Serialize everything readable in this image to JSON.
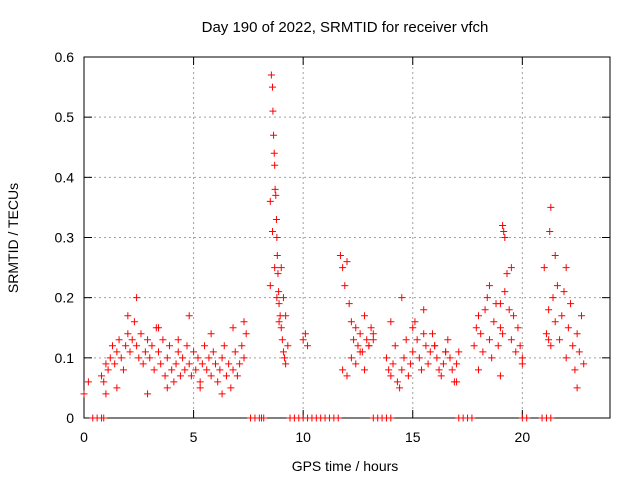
{
  "chart_data": {
    "type": "scatter",
    "title": "Day 190 of 2022, SRMTID for receiver vfch",
    "xlabel": "GPS time / hours",
    "ylabel": "SRMTID / TECUs",
    "xlim": [
      0,
      24
    ],
    "ylim": [
      0,
      0.6
    ],
    "xticks": [
      0,
      5,
      10,
      15,
      20
    ],
    "xtick_labels": [
      "0",
      "5",
      "10",
      "15",
      "20"
    ],
    "yticks": [
      0,
      0.1,
      0.2,
      0.3,
      0.4,
      0.5,
      0.6
    ],
    "ytick_labels": [
      "0",
      "0.1",
      "0.2",
      "0.3",
      "0.4",
      "0.5",
      "0.6"
    ],
    "grid": true,
    "marker": "+",
    "series_color": "#ff0000",
    "series": [
      {
        "name": "SRMTID",
        "x": [
          0.8,
          0.9,
          1.0,
          1.1,
          1.2,
          1.3,
          1.4,
          1.5,
          1.6,
          1.7,
          1.8,
          1.9,
          2.0,
          2.1,
          2.2,
          2.3,
          2.4,
          2.5,
          2.6,
          2.7,
          2.8,
          2.9,
          3.0,
          3.1,
          3.2,
          3.3,
          3.4,
          3.5,
          3.6,
          3.7,
          3.8,
          3.9,
          4.0,
          4.1,
          4.2,
          4.3,
          4.4,
          4.5,
          4.6,
          4.7,
          4.8,
          4.9,
          5.0,
          5.1,
          5.2,
          5.3,
          5.4,
          5.5,
          5.6,
          5.7,
          5.8,
          5.9,
          6.0,
          6.1,
          6.2,
          6.3,
          6.4,
          6.5,
          6.6,
          6.7,
          6.8,
          6.9,
          7.0,
          7.1,
          7.2,
          7.3,
          7.4,
          1.0,
          1.5,
          2.0,
          2.4,
          2.9,
          3.4,
          3.8,
          4.3,
          4.8,
          5.3,
          5.8,
          6.3,
          6.8,
          7.3,
          8.5,
          8.55,
          8.6,
          8.62,
          8.65,
          8.68,
          8.7,
          8.72,
          8.75,
          8.78,
          8.8,
          8.82,
          8.85,
          8.88,
          8.9,
          8.95,
          9.0,
          9.05,
          9.1,
          9.15,
          9.2,
          8.5,
          8.6,
          8.7,
          8.8,
          8.9,
          9.0,
          9.1,
          9.2,
          9.3,
          10.0,
          10.1,
          10.2,
          11.7,
          11.8,
          11.9,
          12.0,
          12.1,
          12.2,
          12.3,
          12.4,
          12.5,
          12.6,
          12.7,
          12.8,
          12.9,
          13.0,
          13.1,
          13.2,
          11.8,
          12.0,
          12.2,
          12.4,
          12.6,
          12.8,
          13.0,
          13.2,
          13.8,
          13.9,
          14.0,
          14.1,
          14.2,
          14.3,
          14.4,
          14.5,
          14.6,
          14.7,
          14.8,
          14.9,
          15.0,
          15.1,
          15.2,
          15.3,
          15.4,
          15.5,
          15.6,
          15.7,
          15.8,
          15.9,
          16.0,
          16.1,
          16.2,
          16.3,
          16.4,
          16.5,
          16.6,
          16.7,
          16.8,
          16.9,
          17.0,
          17.1,
          14.0,
          14.5,
          15.0,
          15.5,
          16.0,
          16.5,
          17.0,
          17.8,
          17.9,
          18.0,
          18.1,
          18.2,
          18.3,
          18.4,
          18.5,
          18.6,
          18.7,
          18.8,
          18.9,
          19.0,
          19.1,
          19.2,
          19.3,
          19.4,
          19.5,
          19.6,
          19.7,
          19.8,
          19.9,
          20.0,
          18.0,
          18.5,
          19.0,
          19.5,
          20.0,
          19.0,
          19.1,
          19.2,
          19.15,
          21.0,
          21.1,
          21.2,
          21.3,
          21.4,
          21.5,
          21.6,
          21.7,
          21.8,
          21.9,
          22.0,
          22.1,
          22.2,
          22.3,
          22.4,
          22.5,
          22.6,
          22.7,
          22.8,
          21.2,
          21.3,
          21.25,
          21.5,
          22.0,
          22.5,
          0.0,
          0.2,
          0.4,
          0.6,
          0.8,
          0.9,
          7.6,
          7.8,
          8.0,
          8.1,
          8.2,
          9.4,
          9.6,
          9.8,
          10.0,
          10.2,
          10.4,
          10.6,
          10.8,
          11.0,
          11.2,
          11.4,
          11.6,
          13.2,
          13.4,
          13.6,
          13.8,
          14.0,
          17.1,
          17.3,
          17.5,
          17.7,
          20.0,
          20.2,
          20.9,
          21.1,
          21.3
        ],
        "y": [
          0.07,
          0.06,
          0.09,
          0.08,
          0.1,
          0.12,
          0.09,
          0.11,
          0.13,
          0.1,
          0.08,
          0.12,
          0.14,
          0.11,
          0.13,
          0.16,
          0.12,
          0.1,
          0.14,
          0.09,
          0.11,
          0.13,
          0.1,
          0.12,
          0.08,
          0.15,
          0.11,
          0.09,
          0.13,
          0.07,
          0.1,
          0.12,
          0.08,
          0.06,
          0.09,
          0.11,
          0.07,
          0.1,
          0.08,
          0.12,
          0.09,
          0.07,
          0.11,
          0.08,
          0.1,
          0.06,
          0.09,
          0.12,
          0.08,
          0.1,
          0.07,
          0.11,
          0.09,
          0.06,
          0.08,
          0.1,
          0.12,
          0.07,
          0.09,
          0.05,
          0.08,
          0.11,
          0.07,
          0.09,
          0.12,
          0.1,
          0.14,
          0.04,
          0.05,
          0.17,
          0.2,
          0.04,
          0.15,
          0.05,
          0.13,
          0.17,
          0.05,
          0.14,
          0.04,
          0.15,
          0.16,
          0.22,
          0.57,
          0.55,
          0.51,
          0.47,
          0.44,
          0.42,
          0.38,
          0.37,
          0.33,
          0.3,
          0.27,
          0.24,
          0.21,
          0.19,
          0.17,
          0.15,
          0.13,
          0.11,
          0.1,
          0.09,
          0.36,
          0.31,
          0.25,
          0.2,
          0.16,
          0.25,
          0.2,
          0.17,
          0.12,
          0.13,
          0.14,
          0.12,
          0.27,
          0.25,
          0.22,
          0.26,
          0.19,
          0.16,
          0.13,
          0.15,
          0.12,
          0.14,
          0.11,
          0.17,
          0.13,
          0.12,
          0.15,
          0.14,
          0.08,
          0.07,
          0.1,
          0.09,
          0.11,
          0.08,
          0.12,
          0.13,
          0.1,
          0.08,
          0.07,
          0.09,
          0.12,
          0.06,
          0.05,
          0.08,
          0.1,
          0.13,
          0.07,
          0.09,
          0.11,
          0.16,
          0.13,
          0.1,
          0.08,
          0.14,
          0.12,
          0.09,
          0.11,
          0.14,
          0.12,
          0.1,
          0.08,
          0.07,
          0.09,
          0.11,
          0.13,
          0.1,
          0.08,
          0.06,
          0.09,
          0.11,
          0.16,
          0.2,
          0.15,
          0.18,
          0.12,
          0.11,
          0.06,
          0.12,
          0.15,
          0.17,
          0.14,
          0.11,
          0.18,
          0.2,
          0.13,
          0.1,
          0.16,
          0.19,
          0.12,
          0.15,
          0.14,
          0.21,
          0.24,
          0.18,
          0.13,
          0.17,
          0.11,
          0.15,
          0.12,
          0.1,
          0.08,
          0.22,
          0.19,
          0.25,
          0.09,
          0.07,
          0.32,
          0.3,
          0.31,
          0.25,
          0.14,
          0.18,
          0.12,
          0.2,
          0.16,
          0.22,
          0.13,
          0.17,
          0.21,
          0.1,
          0.15,
          0.19,
          0.12,
          0.08,
          0.14,
          0.11,
          0.17,
          0.09,
          0.13,
          0.35,
          0.31,
          0.27,
          0.25,
          0.05,
          0.04,
          0.06,
          0.0,
          0.0,
          0.0,
          0.0,
          0.0,
          0.0,
          0.0,
          0.0,
          0.0,
          0.0,
          0.0,
          0.0,
          0.0,
          0.0,
          0.0,
          0.0,
          0.0,
          0.0,
          0.0,
          0.0,
          0.0,
          0.0,
          0.0,
          0.0,
          0.0,
          0.0,
          0.0,
          0.0,
          0.0,
          0.0,
          0.0,
          0.0,
          0.0,
          0.0,
          0.0
        ]
      }
    ]
  }
}
